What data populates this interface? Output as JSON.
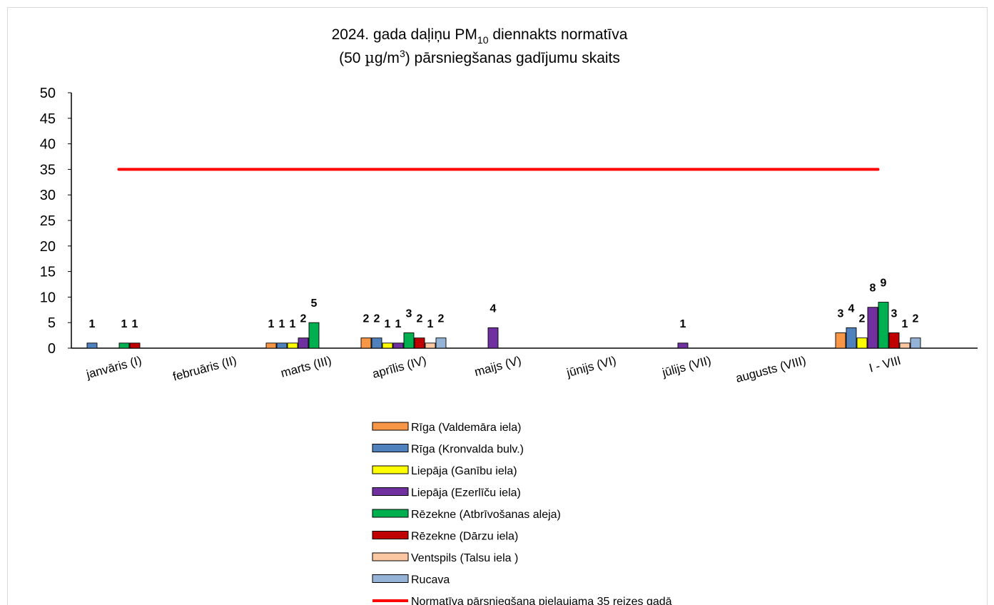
{
  "chart_data": {
    "type": "bar",
    "title_part1": "2024. gada daļiņu PM",
    "title_sub": "10",
    "title_part2": " diennakts normatīva",
    "title_line2_part1": "(50 ",
    "title_line2_mu": "µ",
    "title_line2_part2": "g/m",
    "title_line2_sup": "3",
    "title_line2_part3": ") pārsniegšanas gadījumu skaits",
    "ylim": [
      0,
      50
    ],
    "yticks": [
      0,
      5,
      10,
      15,
      20,
      25,
      30,
      35,
      40,
      45,
      50
    ],
    "grid": false,
    "legend_position": "bottom",
    "categories": [
      "janvāris (I)",
      "februāris (II)",
      "marts (III)",
      "aprīlis (IV)",
      "maijs (V)",
      "jūnijs (VI)",
      "jūlijs (VII)",
      "augusts (VIII)",
      "I - VIII"
    ],
    "series": [
      {
        "name": "Rīga (Valdemāra iela)",
        "color": "#F79646",
        "values": [
          null,
          null,
          1,
          2,
          null,
          null,
          null,
          null,
          3
        ]
      },
      {
        "name": "Rīga (Kronvalda bulv.)",
        "color": "#4F81BD",
        "values": [
          1,
          null,
          1,
          2,
          null,
          null,
          null,
          null,
          4
        ]
      },
      {
        "name": "Liepāja (Ganību iela)",
        "color": "#FFFF00",
        "values": [
          null,
          null,
          1,
          1,
          null,
          null,
          null,
          null,
          2
        ]
      },
      {
        "name": "Liepāja (Ezerlīču iela)",
        "color": "#7030A0",
        "values": [
          null,
          null,
          2,
          1,
          4,
          null,
          1,
          null,
          8
        ]
      },
      {
        "name": "Rēzekne (Atbrīvošanas aleja)",
        "color": "#00B050",
        "values": [
          1,
          null,
          5,
          3,
          null,
          null,
          null,
          null,
          9
        ]
      },
      {
        "name": "Rēzekne (Dārzu iela)",
        "color": "#C00000",
        "values": [
          1,
          null,
          null,
          2,
          null,
          null,
          null,
          null,
          3
        ]
      },
      {
        "name": "Ventspils (Talsu iela )",
        "color": "#FBC7A2",
        "values": [
          null,
          null,
          null,
          1,
          null,
          null,
          null,
          null,
          1
        ]
      },
      {
        "name": "Rucava",
        "color": "#95B3D7",
        "values": [
          null,
          null,
          null,
          2,
          null,
          null,
          null,
          null,
          2
        ]
      }
    ],
    "threshold_line": {
      "name": "Normatīva pārsniegšana pieļaujama 35 reizes gadā",
      "value": 35,
      "color": "#FF0000"
    }
  }
}
